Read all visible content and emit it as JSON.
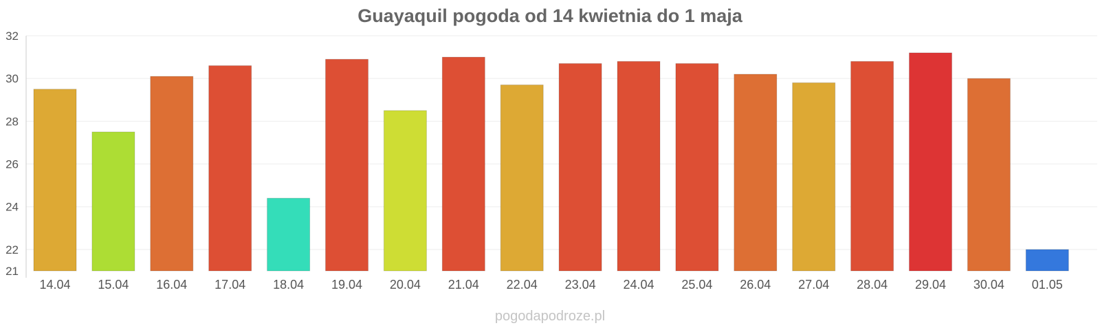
{
  "chart_data": {
    "type": "bar",
    "title": "Guayaquil pogoda od 14 kwietnia do 1 maja",
    "xlabel": "",
    "ylabel": "",
    "categories": [
      "14.04",
      "15.04",
      "16.04",
      "17.04",
      "18.04",
      "19.04",
      "20.04",
      "21.04",
      "22.04",
      "23.04",
      "24.04",
      "25.04",
      "26.04",
      "27.04",
      "28.04",
      "29.04",
      "30.04",
      "01.05"
    ],
    "values": [
      29.5,
      27.5,
      30.1,
      30.6,
      24.4,
      30.9,
      28.5,
      31.0,
      29.7,
      30.7,
      30.8,
      30.7,
      30.2,
      29.8,
      30.8,
      31.2,
      30.0,
      22.0
    ],
    "colors": [
      "#dda934",
      "#addd34",
      "#dd6f34",
      "#dd4f34",
      "#34ddb9",
      "#dd4f34",
      "#cedd34",
      "#dd4f34",
      "#dda934",
      "#dd4f34",
      "#dd4f34",
      "#dd4f34",
      "#dd6f34",
      "#dda934",
      "#dd4f34",
      "#dd3434",
      "#dd6f34",
      "#3478dd"
    ],
    "ylim": [
      21,
      32
    ],
    "yticks": [
      21,
      22,
      24,
      26,
      28,
      30,
      32
    ],
    "grid": true,
    "legend": "none"
  },
  "watermark": "pogodapodroze.pl"
}
